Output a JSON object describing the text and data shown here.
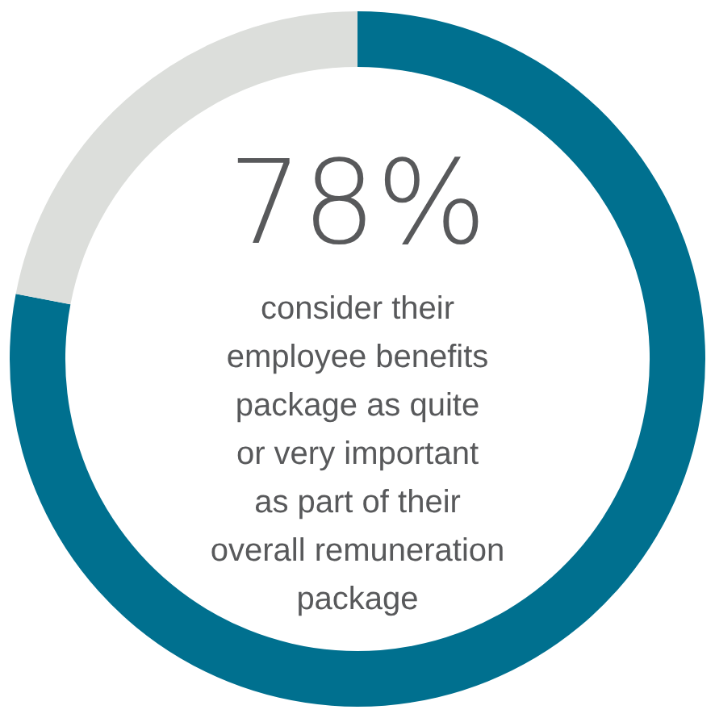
{
  "chart_data": {
    "type": "donut",
    "categories": [
      null,
      null
    ],
    "values": [
      78,
      22
    ],
    "colors": [
      "#00708f",
      "#dcdedb"
    ],
    "value_labels": [
      "78%",
      null
    ],
    "legend": false,
    "annotations": [
      "consider their\nemployee benefits\npackage as quite\nor very important\nas part of their\noverall remuneration\npackage"
    ]
  }
}
